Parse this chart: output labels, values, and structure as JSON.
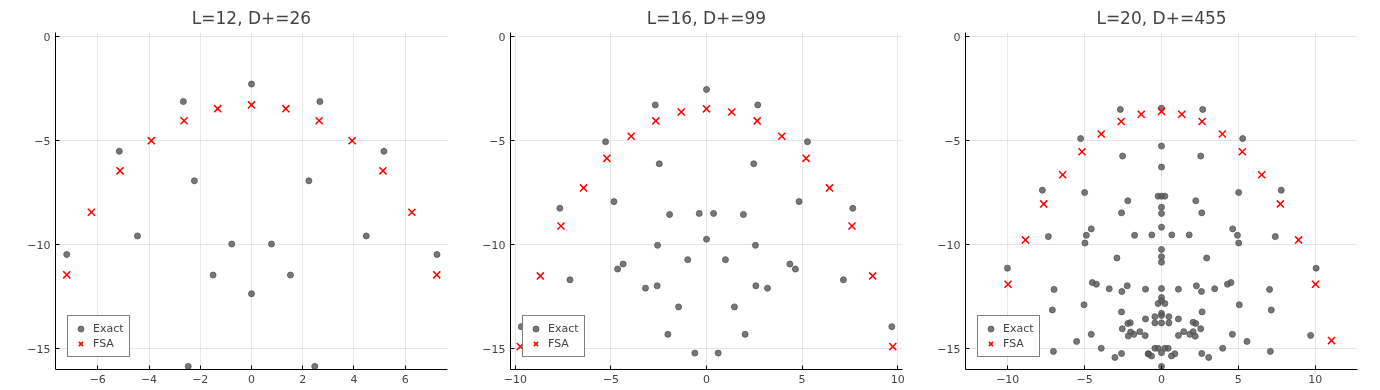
{
  "chart_data": [
    {
      "type": "scatter",
      "title": "L=12, D+=26",
      "xlim": [
        -7.65,
        7.65
      ],
      "ylim": [
        -16,
        0.2
      ],
      "xticks": [
        {
          "value": -6,
          "label": "−6"
        },
        {
          "value": -4,
          "label": "−4"
        },
        {
          "value": -2,
          "label": "−2"
        },
        0,
        2,
        4,
        6
      ],
      "yticks": [
        0,
        {
          "value": -5,
          "label": "−5"
        },
        {
          "value": -10,
          "label": "−10"
        },
        {
          "value": -15,
          "label": "−15"
        }
      ],
      "grid": true,
      "legend": "bottom left",
      "series": [
        {
          "name": "Exact",
          "color": "#555555",
          "marker": "circle",
          "x": [
            0,
            -2.66,
            2.67,
            -5.16,
            5.17,
            -2.23,
            2.24,
            -4.45,
            4.48,
            -0.77,
            0.78,
            -7.21,
            7.24,
            -1.5,
            1.52,
            0,
            -2.47,
            2.47
          ],
          "values": [
            -2.28,
            -3.12,
            -3.12,
            -5.51,
            -5.51,
            -6.93,
            -6.93,
            -9.58,
            -9.58,
            -9.97,
            -9.97,
            -10.47,
            -10.47,
            -11.46,
            -11.46,
            -12.36,
            -15.85,
            -15.85
          ]
        },
        {
          "name": "FSA",
          "color": "#ff0000",
          "marker": "cross",
          "x": [
            -7.21,
            -6.25,
            -5.13,
            -3.91,
            -2.63,
            -1.32,
            0,
            1.34,
            2.64,
            3.93,
            5.13,
            6.26,
            7.23
          ],
          "values": [
            -11.45,
            -8.44,
            -6.45,
            -5.0,
            -4.04,
            -3.46,
            -3.28,
            -3.46,
            -4.04,
            -5.0,
            -6.45,
            -8.44,
            -11.45
          ]
        }
      ]
    },
    {
      "type": "scatter",
      "title": "L=16, D+=99",
      "xlim": [
        -10.25,
        10.25
      ],
      "ylim": [
        -16,
        0.2
      ],
      "xticks": [
        {
          "value": -10,
          "label": "−10"
        },
        {
          "value": -5,
          "label": "−5"
        },
        0,
        5,
        10
      ],
      "yticks": [
        0,
        {
          "value": -5,
          "label": "−5"
        },
        {
          "value": -10,
          "label": "−10"
        },
        {
          "value": -15,
          "label": "−15"
        }
      ],
      "grid": true,
      "legend": "bottom left",
      "series": [
        {
          "name": "Exact",
          "color": "#555555",
          "marker": "circle",
          "x": [
            0,
            -2.68,
            2.68,
            -5.28,
            5.28,
            -2.47,
            2.47,
            -4.84,
            4.84,
            -7.67,
            7.65,
            -1.93,
            1.93,
            -0.38,
            0.37,
            0,
            -2.56,
            2.56,
            -0.98,
            0.99,
            -4.36,
            4.36,
            -4.65,
            4.65,
            -7.14,
            7.16,
            -3.19,
            3.19,
            -2.58,
            2.58,
            -1.46,
            1.46,
            -2.02,
            2.02,
            -0.61,
            0.61,
            -9.69,
            9.69
          ],
          "values": [
            -2.54,
            -3.28,
            -3.28,
            -5.05,
            -5.05,
            -6.11,
            -6.11,
            -7.93,
            -7.93,
            -8.25,
            -8.25,
            -8.55,
            -8.55,
            -8.5,
            -8.5,
            -9.74,
            -10.03,
            -10.03,
            -10.72,
            -10.72,
            -10.93,
            -10.93,
            -11.17,
            -11.17,
            -11.69,
            -11.69,
            -12.09,
            -12.09,
            -11.98,
            -11.98,
            -12.99,
            -12.99,
            -14.31,
            -14.31,
            -15.21,
            -15.21,
            -13.94,
            -13.94
          ]
        },
        {
          "name": "FSA",
          "color": "#ff0000",
          "marker": "cross",
          "x": [
            -9.74,
            -8.69,
            -7.61,
            -6.43,
            -5.21,
            -3.94,
            -2.65,
            -1.32,
            0,
            1.32,
            2.65,
            3.94,
            5.21,
            6.43,
            7.61,
            8.69,
            9.74
          ],
          "values": [
            -14.9,
            -11.5,
            -9.1,
            -7.27,
            -5.85,
            -4.79,
            -4.05,
            -3.62,
            -3.47,
            -3.62,
            -4.05,
            -4.79,
            -5.85,
            -7.27,
            -9.1,
            -11.5,
            -14.9
          ]
        }
      ]
    },
    {
      "type": "scatter",
      "title": "L=20, D+=455",
      "xlim": [
        -12.75,
        12.75
      ],
      "ylim": [
        -16,
        0.2
      ],
      "xticks": [
        {
          "value": -10,
          "label": "−10"
        },
        {
          "value": -5,
          "label": "−5"
        },
        0,
        5,
        10
      ],
      "yticks": [
        0,
        {
          "value": -5,
          "label": "−5"
        },
        {
          "value": -10,
          "label": "−10"
        },
        {
          "value": -15,
          "label": "−15"
        }
      ],
      "grid": true,
      "legend": "bottom left",
      "series": [
        {
          "name": "Exact",
          "color": "#555555",
          "marker": "circle",
          "x": [
            -2.68,
            -5.26,
            -2.53,
            -7.75,
            -5.0,
            -2.19,
            -2.6,
            -4.57,
            -7.36,
            -4.89,
            -1.75,
            -4.98,
            -2.9,
            -10.02,
            -4.5,
            -4.24,
            -6.99,
            -3.4,
            -2.23,
            -2.58,
            -1.04,
            -7.1,
            -5.04,
            -2.6,
            -1.04,
            -2.19,
            -2.03,
            -2.55,
            -2.01,
            -1.8,
            -1.41,
            -1.06,
            -2.16,
            -4.57,
            -5.52,
            -3.92,
            -7.03,
            -2.6,
            -3.03,
            -0.84,
            0,
            2.68,
            0,
            5.28,
            2.55,
            0,
            5.02,
            7.79,
            -0.22,
            0,
            0.22,
            2.23,
            0,
            0,
            2.62,
            0,
            4.63,
            -0.63,
            0.67,
            1.8,
            4.94,
            7.4,
            5.02,
            0,
            0,
            0,
            2.94,
            10.06,
            0,
            1.1,
            2.27,
            2.6,
            3.46,
            4.29,
            4.52,
            7.03,
            0,
            0,
            -0.22,
            0.22,
            5.06,
            7.14,
            2.64,
            0,
            0,
            -0.43,
            0.48,
            1.1,
            -0.43,
            0.48,
            0,
            2.06,
            2.23,
            2.55,
            1.1,
            1.45,
            1.84,
            2.06,
            2.19,
            4.61,
            5.56,
            3.98,
            9.7,
            7.08,
            -0.43,
            -0.22,
            0.22,
            0.43,
            0,
            -0.87,
            -0.65,
            0.65,
            0.87,
            2.62,
            3.07,
            0
          ],
          "values": [
            -3.5,
            -4.9,
            -5.74,
            -7.38,
            -7.49,
            -7.89,
            -8.47,
            -9.24,
            -9.61,
            -9.55,
            -9.55,
            -9.92,
            -10.64,
            -11.13,
            -11.82,
            -11.9,
            -12.15,
            -12.12,
            -11.98,
            -12.25,
            -12.14,
            -13.14,
            -12.89,
            -13.23,
            -13.57,
            -13.79,
            -13.75,
            -14.04,
            -14.2,
            -14.31,
            -14.18,
            -14.37,
            -14.39,
            -14.31,
            -14.65,
            -14.98,
            -15.13,
            -15.23,
            -15.42,
            -15.26,
            -3.44,
            -3.5,
            -5.26,
            -4.9,
            -5.74,
            -6.27,
            -7.49,
            -7.38,
            -7.67,
            -7.67,
            -7.67,
            -7.89,
            -8.2,
            -8.5,
            -8.47,
            -9.16,
            -9.24,
            -9.53,
            -9.53,
            -9.53,
            -9.55,
            -9.61,
            -9.92,
            -10.23,
            -10.58,
            -10.84,
            -10.64,
            -11.13,
            -12.11,
            -12.14,
            -11.98,
            -12.25,
            -12.12,
            -11.9,
            -11.82,
            -12.15,
            -12.54,
            -12.7,
            -12.83,
            -12.83,
            -12.89,
            -13.14,
            -13.23,
            -13.3,
            -13.41,
            -13.46,
            -13.46,
            -13.57,
            -13.76,
            -13.76,
            -13.76,
            -13.73,
            -13.79,
            -14.04,
            -14.36,
            -14.18,
            -14.31,
            -14.18,
            -14.4,
            -14.31,
            -14.65,
            -14.98,
            -14.36,
            -15.13,
            -14.98,
            -14.98,
            -14.98,
            -14.98,
            -15.19,
            -15.24,
            -15.35,
            -15.35,
            -15.24,
            -15.23,
            -15.42,
            -15.85
          ]
        },
        {
          "name": "FSA",
          "color": "#ff0000",
          "marker": "cross",
          "x": [
            -9.98,
            -8.85,
            -7.66,
            -6.43,
            -5.17,
            -3.92,
            -2.62,
            -1.32,
            0,
            1.32,
            2.64,
            3.96,
            5.26,
            6.52,
            7.73,
            8.92,
            10.02,
            11.06
          ],
          "values": [
            -11.9,
            -9.77,
            -8.04,
            -6.64,
            -5.53,
            -4.68,
            -4.08,
            -3.73,
            -3.6,
            -3.73,
            -4.08,
            -4.68,
            -5.53,
            -6.64,
            -8.04,
            -9.77,
            -11.9,
            -14.61
          ]
        }
      ]
    }
  ]
}
